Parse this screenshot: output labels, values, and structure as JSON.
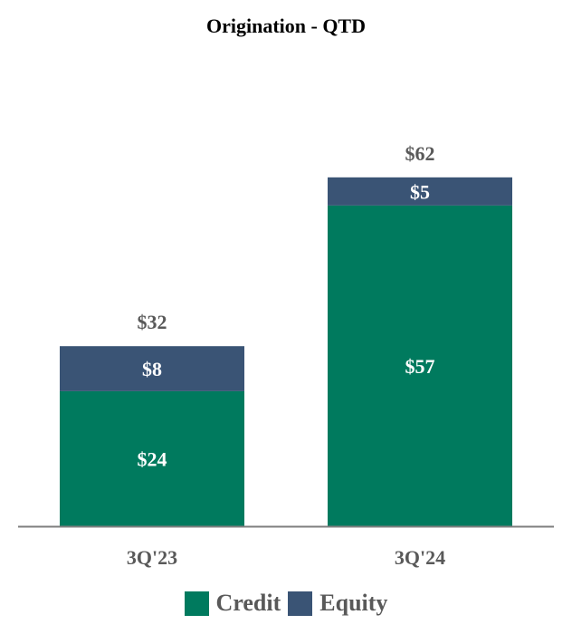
{
  "chart_data": {
    "type": "bar",
    "stacked": true,
    "title": "Origination - QTD",
    "categories": [
      "3Q'23",
      "3Q'24"
    ],
    "series": [
      {
        "name": "Credit",
        "values": [
          24,
          57
        ],
        "labels": [
          "$24",
          "$57"
        ],
        "color": "#007a5e"
      },
      {
        "name": "Equity",
        "values": [
          8,
          5
        ],
        "labels": [
          "$8",
          "$5"
        ],
        "color": "#3a5475"
      }
    ],
    "totals": [
      32,
      62
    ],
    "total_labels": [
      "$32",
      "$62"
    ],
    "xlabel": "",
    "ylabel": "",
    "ylim": [
      0,
      80
    ],
    "grid": false,
    "legend": "bottom"
  }
}
